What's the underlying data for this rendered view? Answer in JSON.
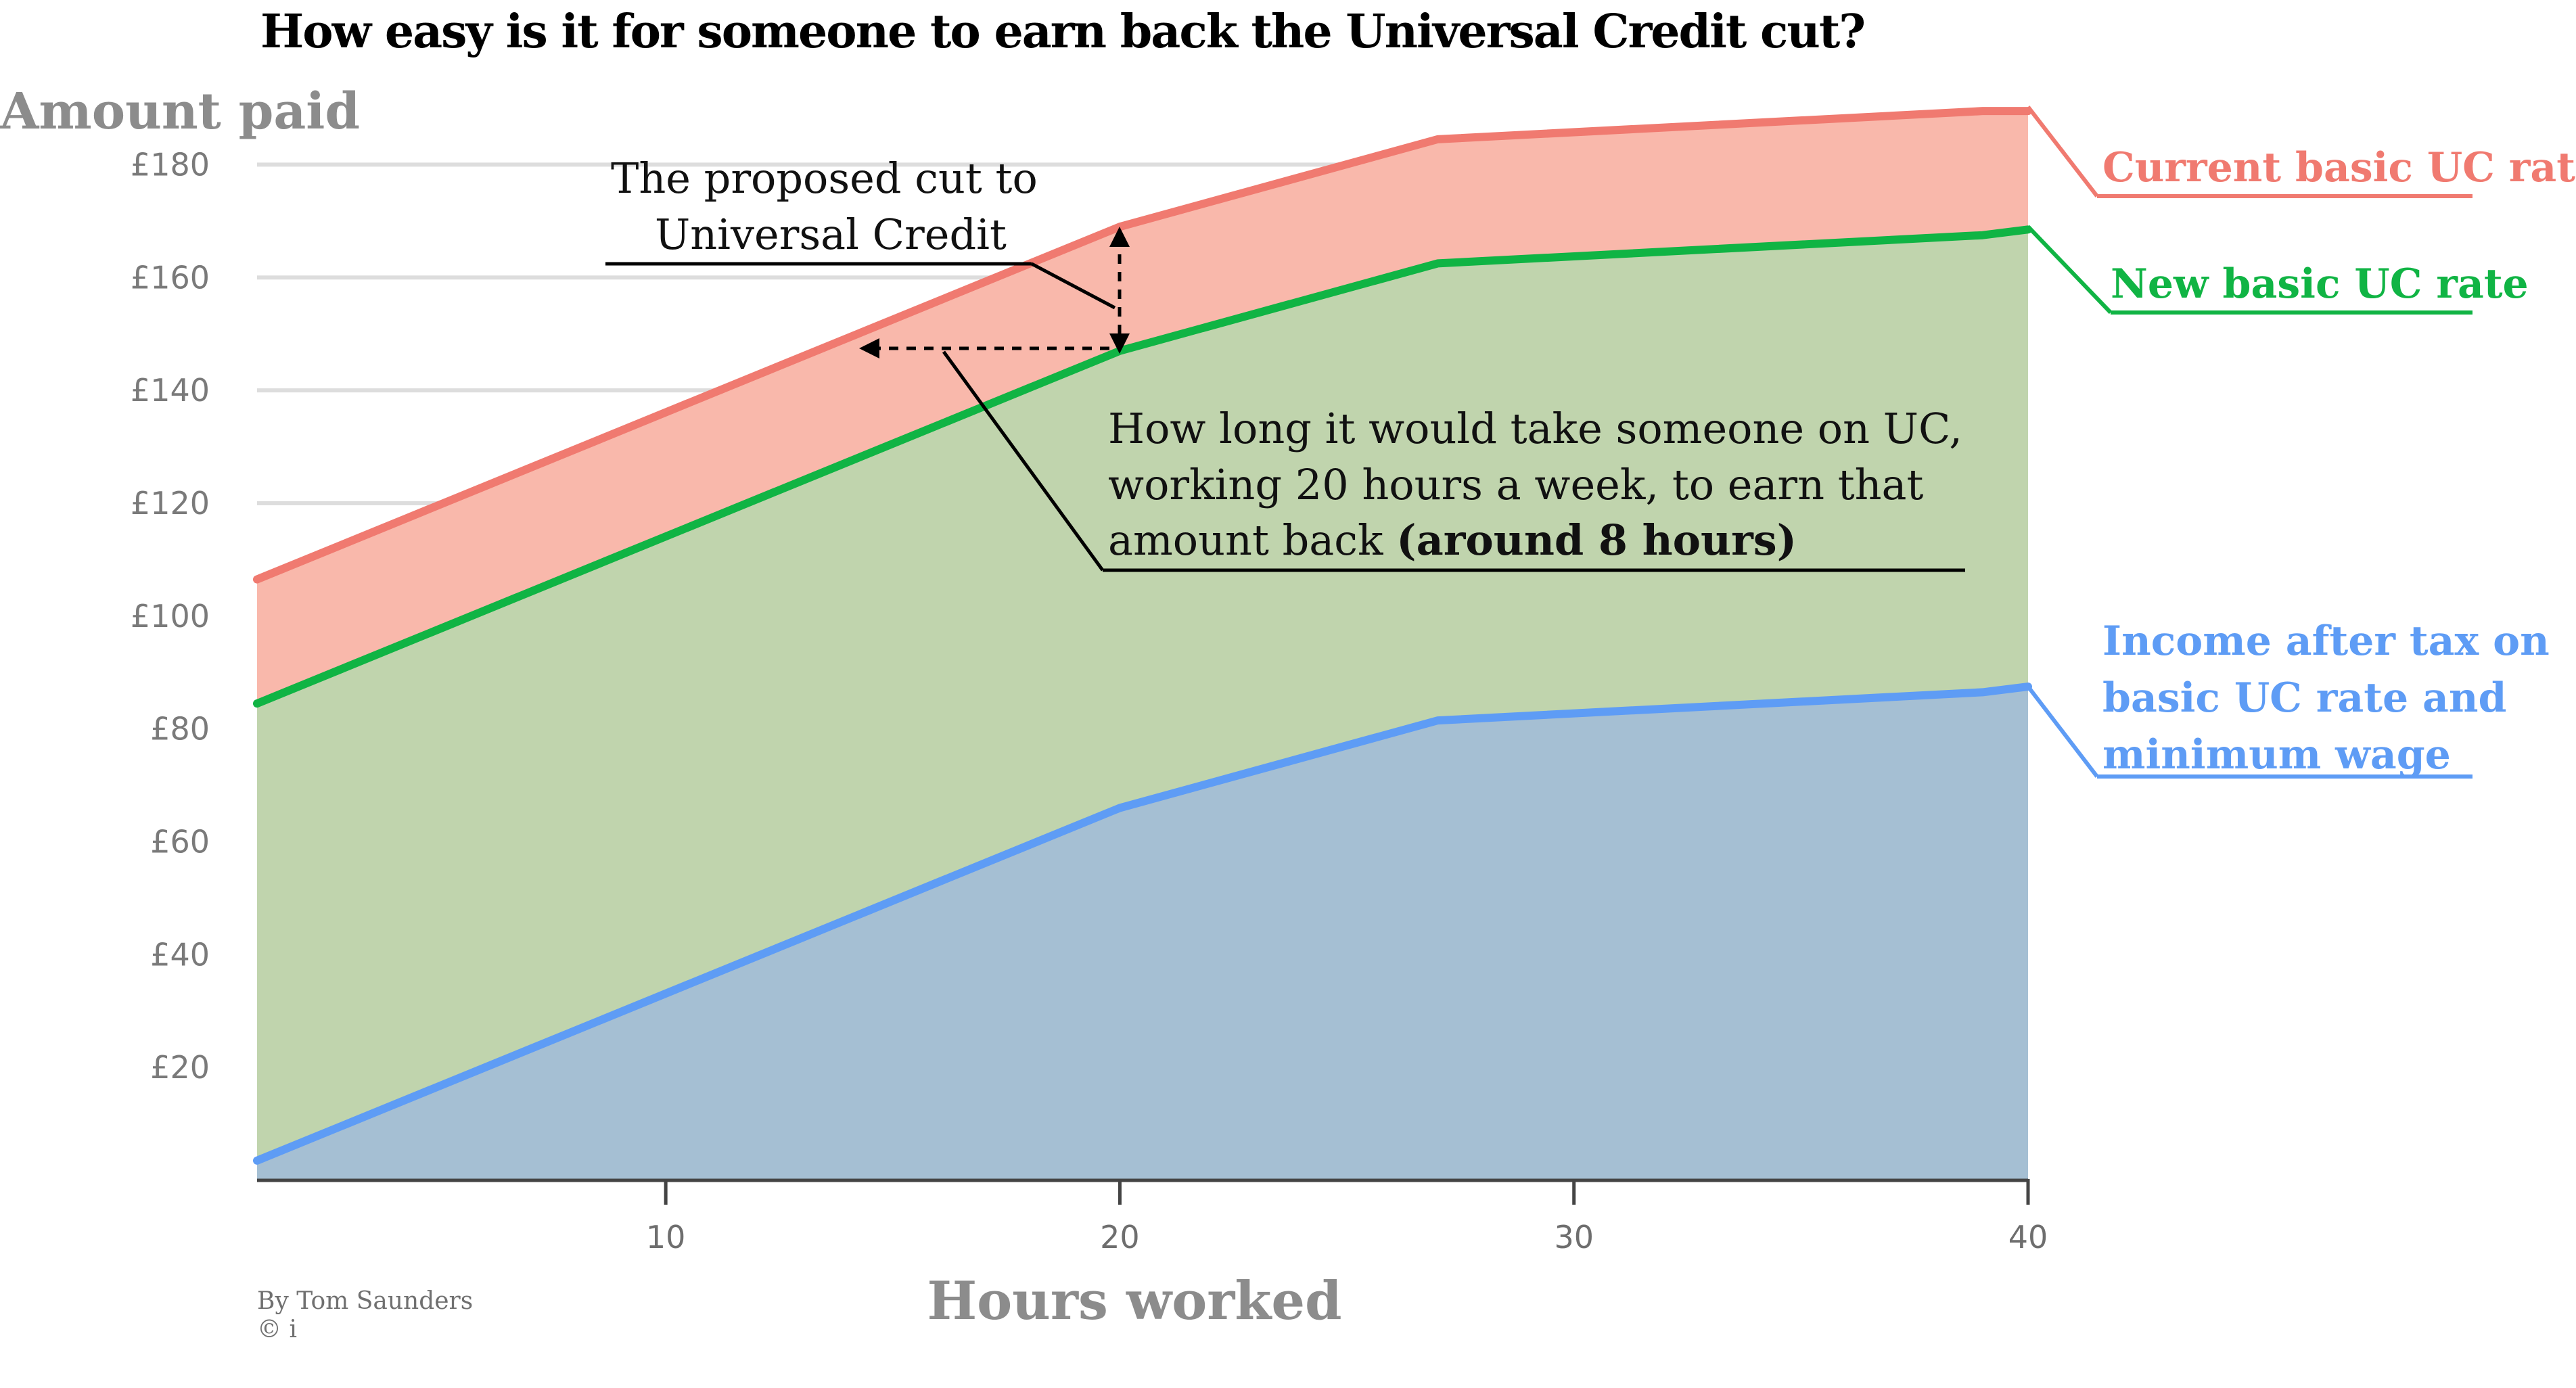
{
  "chart_data": {
    "type": "area",
    "title": "How easy is it for someone to earn back the Universal Credit cut?",
    "ylabel": "Amount paid",
    "xlabel": "Hours worked",
    "xlim": [
      1,
      40
    ],
    "ylim": [
      0,
      190
    ],
    "yticks": [
      20,
      40,
      60,
      80,
      100,
      120,
      140,
      160,
      180
    ],
    "ytick_labels": [
      "£20",
      "£40",
      "£60",
      "£80",
      "£100",
      "£120",
      "£140",
      "£160",
      "£180"
    ],
    "xticks": [
      10,
      20,
      30,
      40
    ],
    "xtick_labels": [
      "10",
      "20",
      "30",
      "40"
    ],
    "grid": true,
    "series": [
      {
        "name": "Current basic UC rate",
        "color": "#f07a70",
        "fill": "#f9b8ab",
        "x": [
          1,
          20,
          27,
          39,
          40
        ],
        "y": [
          106.5,
          169,
          184.5,
          189.5,
          189.5
        ]
      },
      {
        "name": "New basic UC rate",
        "color": "#10b444",
        "fill": "#c0d4ad",
        "x": [
          1,
          20,
          27,
          39,
          40
        ],
        "y": [
          84.5,
          147,
          162.5,
          167.5,
          168.5
        ]
      },
      {
        "name": "Income after tax on basic UC rate and minimum wage",
        "label_lines": [
          "Income after tax on",
          "basic UC rate and",
          "minimum wage"
        ],
        "color": "#5e9cf5",
        "fill": "#a5bfd3",
        "x": [
          1,
          20,
          27,
          39,
          40
        ],
        "y": [
          3.5,
          66,
          81.5,
          86.5,
          87.5
        ]
      }
    ],
    "annotations": [
      {
        "lines": [
          "The proposed cut to",
          "Universal Credit"
        ]
      },
      {
        "lines": [
          "How long it would take someone on UC,",
          "working 20 hours a week, to earn that"
        ],
        "last_line_regular": "amount back ",
        "last_line_bold": "(around 8 hours)"
      }
    ],
    "credits": [
      "By Tom Saunders",
      "© i"
    ]
  }
}
